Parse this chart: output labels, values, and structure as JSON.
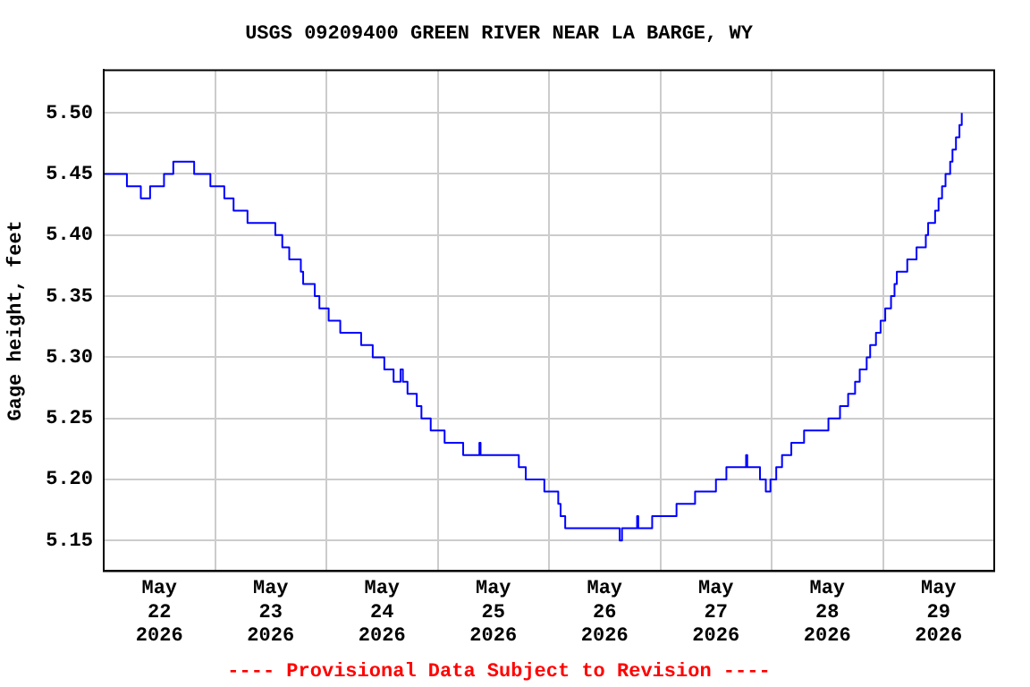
{
  "chart_data": {
    "type": "step",
    "title": "USGS 09209400 GREEN RIVER NEAR LA BARGE, WY",
    "ylabel": "Gage height, feet",
    "annotations": [
      "---- Provisional Data Subject to Revision ----"
    ],
    "xlim": [
      "2026-05-22T00:00",
      "2026-05-30T00:00"
    ],
    "xticks": [
      {
        "value": "2026-05-22T00:00",
        "label": null
      },
      {
        "value": "2026-05-22T12:00",
        "label": "May 22 2026"
      },
      {
        "value": "2026-05-23T00:00",
        "label": null
      },
      {
        "value": "2026-05-23T12:00",
        "label": "May 23 2026"
      },
      {
        "value": "2026-05-24T00:00",
        "label": null
      },
      {
        "value": "2026-05-24T12:00",
        "label": "May 24 2026"
      },
      {
        "value": "2026-05-25T00:00",
        "label": null
      },
      {
        "value": "2026-05-25T12:00",
        "label": "May 25 2026"
      },
      {
        "value": "2026-05-26T00:00",
        "label": null
      },
      {
        "value": "2026-05-26T12:00",
        "label": "May 26 2026"
      },
      {
        "value": "2026-05-27T00:00",
        "label": null
      },
      {
        "value": "2026-05-27T12:00",
        "label": "May 27 2026"
      },
      {
        "value": "2026-05-28T00:00",
        "label": null
      },
      {
        "value": "2026-05-28T12:00",
        "label": "May 28 2026"
      },
      {
        "value": "2026-05-29T00:00",
        "label": null
      },
      {
        "value": "2026-05-29T12:00",
        "label": "May 29 2026"
      },
      {
        "value": "2026-05-30T00:00",
        "label": null
      }
    ],
    "ylim": [
      5.125,
      5.535
    ],
    "yticks": [
      5.15,
      {
        "value": 5.2,
        "label": "5.20"
      },
      5.25,
      {
        "value": 5.3,
        "label": "5.30"
      },
      5.35,
      {
        "value": 5.4,
        "label": "5.40"
      },
      5.45,
      {
        "value": 5.5,
        "label": "5.50"
      }
    ],
    "grid": true,
    "legend": false,
    "marker": "none",
    "line_style": "solid",
    "series": [
      {
        "color": "#0000ff",
        "x": [
          "2026-05-22T00:00",
          "2026-05-22T05:00",
          "2026-05-22T08:00",
          "2026-05-22T10:00",
          "2026-05-22T13:00",
          "2026-05-22T15:00",
          "2026-05-22T19:30",
          "2026-05-22T23:00",
          "2026-05-23T02:00",
          "2026-05-23T04:00",
          "2026-05-23T07:00",
          "2026-05-23T13:00",
          "2026-05-23T14:30",
          "2026-05-23T16:00",
          "2026-05-23T18:30",
          "2026-05-23T19:00",
          "2026-05-23T21:30",
          "2026-05-23T22:30",
          "2026-05-24T00:30",
          "2026-05-24T03:00",
          "2026-05-24T07:30",
          "2026-05-24T10:00",
          "2026-05-24T12:30",
          "2026-05-24T14:30",
          "2026-05-24T16:00",
          "2026-05-24T16:30",
          "2026-05-24T17:30",
          "2026-05-24T19:30",
          "2026-05-24T20:30",
          "2026-05-24T22:30",
          "2026-05-25T01:30",
          "2026-05-25T05:30",
          "2026-05-25T09:00",
          "2026-05-25T09:15",
          "2026-05-25T17:30",
          "2026-05-25T19:00",
          "2026-05-25T23:00",
          "2026-05-26T02:00",
          "2026-05-26T02:30",
          "2026-05-26T03:30",
          "2026-05-26T15:15",
          "2026-05-26T15:45",
          "2026-05-26T19:00",
          "2026-05-26T19:15",
          "2026-05-26T22:15",
          "2026-05-27T03:30",
          "2026-05-27T07:30",
          "2026-05-27T12:00",
          "2026-05-27T14:15",
          "2026-05-27T18:30",
          "2026-05-27T18:45",
          "2026-05-27T21:30",
          "2026-05-27T22:45",
          "2026-05-27T23:45",
          "2026-05-28T01:00",
          "2026-05-28T02:15",
          "2026-05-28T04:15",
          "2026-05-28T07:00",
          "2026-05-28T12:15",
          "2026-05-28T14:45",
          "2026-05-28T16:30",
          "2026-05-28T18:00",
          "2026-05-28T19:00",
          "2026-05-28T20:30",
          "2026-05-28T21:15",
          "2026-05-28T22:30",
          "2026-05-28T23:30",
          "2026-05-29T00:30",
          "2026-05-29T01:45",
          "2026-05-29T02:30",
          "2026-05-29T03:00",
          "2026-05-29T05:15",
          "2026-05-29T07:15",
          "2026-05-29T09:15",
          "2026-05-29T09:45",
          "2026-05-29T11:15",
          "2026-05-29T12:00",
          "2026-05-29T12:45",
          "2026-05-29T13:30",
          "2026-05-29T14:30",
          "2026-05-29T15:00",
          "2026-05-29T15:45",
          "2026-05-29T16:30",
          "2026-05-29T17:00"
        ],
        "values": [
          5.45,
          5.44,
          5.43,
          5.44,
          5.45,
          5.46,
          5.45,
          5.44,
          5.43,
          5.42,
          5.41,
          5.4,
          5.39,
          5.38,
          5.37,
          5.36,
          5.35,
          5.34,
          5.33,
          5.32,
          5.31,
          5.3,
          5.29,
          5.28,
          5.29,
          5.28,
          5.27,
          5.26,
          5.25,
          5.24,
          5.23,
          5.22,
          5.23,
          5.22,
          5.21,
          5.2,
          5.19,
          5.18,
          5.17,
          5.16,
          5.15,
          5.16,
          5.17,
          5.16,
          5.17,
          5.18,
          5.19,
          5.2,
          5.21,
          5.22,
          5.21,
          5.2,
          5.19,
          5.2,
          5.21,
          5.22,
          5.23,
          5.24,
          5.25,
          5.26,
          5.27,
          5.28,
          5.29,
          5.3,
          5.31,
          5.32,
          5.33,
          5.34,
          5.35,
          5.36,
          5.37,
          5.38,
          5.39,
          5.4,
          5.41,
          5.42,
          5.43,
          5.44,
          5.45,
          5.46,
          5.47,
          5.48,
          5.49,
          5.5
        ]
      }
    ]
  }
}
